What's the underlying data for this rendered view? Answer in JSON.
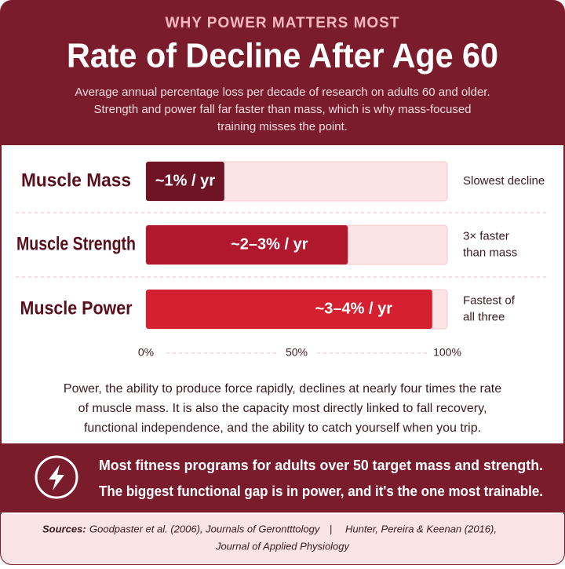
{
  "eyebrow": "WHY POWER MATTERS MOST",
  "chart_data": {
    "type": "bar",
    "orientation": "horizontal",
    "title": "Rate of Decline After Age 60",
    "subtitle": [
      "Average annual percentage loss per decade of research on adults 60 and older.",
      "Strength and power fall far faster than mass, which is why mass-focused",
      "training misses the point."
    ],
    "categories": [
      "Muscle Mass",
      "Muscle Strength",
      "Muscle Power"
    ],
    "values": [
      26,
      67,
      95
    ],
    "bar_texts": [
      "~1% / yr",
      "~2–3% / yr",
      "~3–4% / yr"
    ],
    "notes": [
      [
        "Slowest decline"
      ],
      [
        "3× faster",
        "than mass"
      ],
      [
        "Fastest of",
        "all three"
      ]
    ],
    "colors": [
      "#6e1424",
      "#b0182e",
      "#d42030"
    ],
    "track_color": "#fbe3e6",
    "xlim": [
      0,
      100
    ],
    "xticks": [
      {
        "value": 0,
        "label": "0%"
      },
      {
        "value": 50,
        "label": "50%"
      },
      {
        "value": 100,
        "label": "100%"
      }
    ]
  },
  "body": [
    "Power, the ability to produce force rapidly, declines at nearly four times the rate",
    "of muscle mass. It is also the capacity most directly linked to fall recovery,",
    "functional independence, and the ability to catch yourself when you trip."
  ],
  "callout": [
    "Most fitness programs for adults over 50 target mass and strength.",
    "The biggest functional gap is in power, and it's the one most trainable."
  ],
  "sources": {
    "label": "Sources:",
    "items": [
      "Goodpaster et al. (2006), Journals of Gerontttology",
      "Hunter, Pereira & Keenan (2016),",
      "Journal of Applied Physiology"
    ]
  }
}
